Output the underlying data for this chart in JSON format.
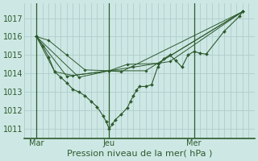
{
  "title": "Pression niveau de la mer( hPa )",
  "bg_color": "#cde8e4",
  "grid_color": "#b0cccc",
  "line_color": "#2d5a2d",
  "ylim": [
    1010.5,
    1017.8
  ],
  "yticks": [
    1011,
    1012,
    1013,
    1014,
    1015,
    1016,
    1017
  ],
  "xtick_labels": [
    "Mar",
    "Jeu",
    "Mer"
  ],
  "xtick_positions": [
    2,
    14,
    28
  ],
  "vline_positions": [
    2,
    14,
    28
  ],
  "n_xgrid": 38,
  "xlim": [
    0,
    38
  ],
  "series": [
    [
      1016.0,
      1015.5,
      1014.9,
      1014.1,
      1013.8,
      1013.5,
      1013.15,
      1013.0,
      1012.8,
      1012.5,
      1012.2,
      1011.7,
      1011.4,
      1011.0,
      1011.25,
      1011.5,
      1011.8,
      1012.15,
      1012.5,
      1012.8,
      1013.1,
      1013.3,
      1013.3,
      1013.4,
      1014.35,
      1014.8,
      1015.0,
      1014.7,
      1014.35,
      1015.0,
      1015.2,
      1015.1,
      1015.05,
      1016.3,
      1017.1,
      1017.35
    ],
    [
      1016.0,
      1015.8,
      1015.0,
      1014.2,
      1014.15,
      1014.15,
      1017.35
    ],
    [
      1016.0,
      1014.1,
      1013.9,
      1014.15,
      1014.5,
      1014.55,
      1017.35
    ],
    [
      1016.0,
      1013.85,
      1014.15,
      1014.35,
      1014.65,
      1017.35
    ],
    [
      1016.0,
      1013.8,
      1014.15,
      1014.1,
      1017.35
    ]
  ],
  "series_x": [
    [
      2,
      3,
      4,
      5,
      6,
      7,
      8,
      9,
      10,
      11,
      12,
      13,
      13.5,
      14,
      14.5,
      15,
      16,
      17,
      17.5,
      18,
      18.5,
      19,
      20,
      21,
      22,
      23,
      24,
      25,
      26,
      27,
      28,
      29,
      30,
      33,
      35.5,
      36
    ],
    [
      2,
      4,
      7,
      10,
      14,
      20,
      36
    ],
    [
      2,
      5,
      8,
      14,
      17,
      22,
      36
    ],
    [
      2,
      7,
      14,
      18,
      24,
      36
    ],
    [
      2,
      9,
      14,
      16,
      36
    ]
  ],
  "xlabel_fontsize": 8,
  "tick_fontsize": 7
}
